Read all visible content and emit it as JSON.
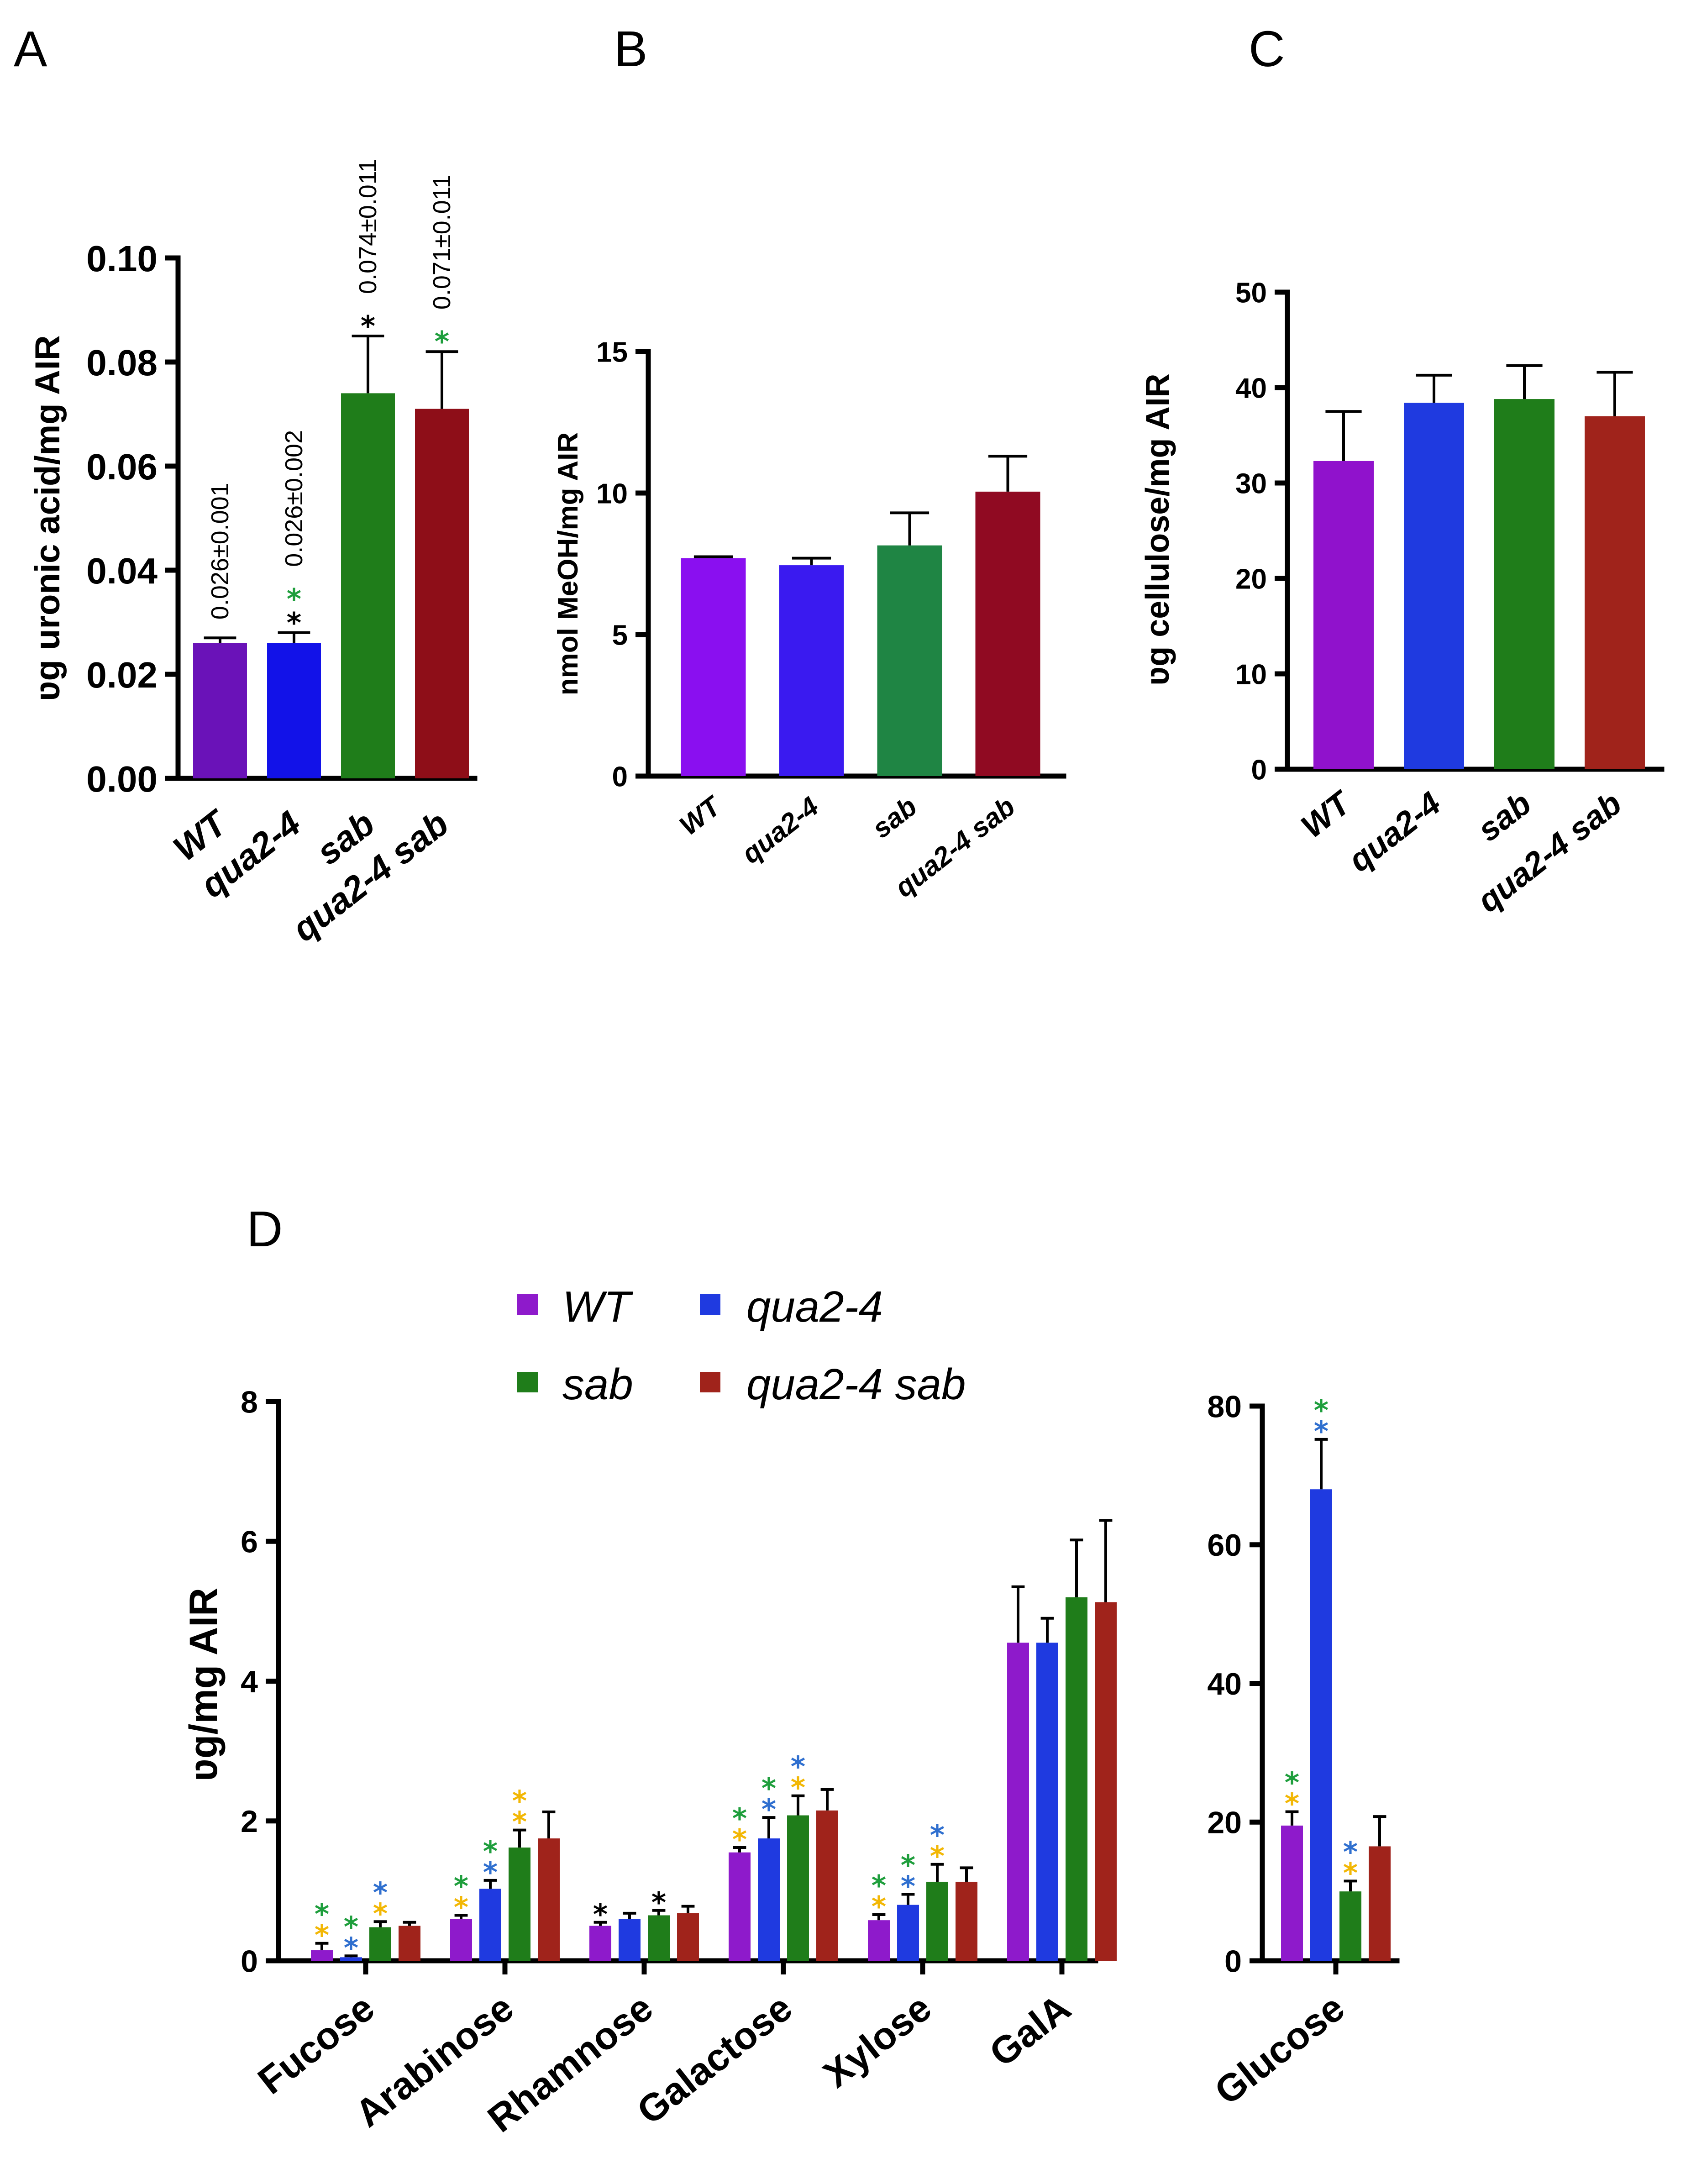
{
  "colors": {
    "purple": "#8E1ACB",
    "blue": "#1F3AE0",
    "green": "#1F7D1A",
    "red": "#A0231B",
    "star_green": "#1E9E3C",
    "star_blue": "#2F6FCF",
    "star_yellow": "#F2B705",
    "star_black": "#000000"
  },
  "chart_data": [
    {
      "id": "A",
      "panel_label": "A",
      "type": "bar",
      "ylabel": "ʋg uronic acid/mg AIR",
      "ylim": [
        0,
        0.1
      ],
      "yticks": [
        0,
        0.02,
        0.04,
        0.06,
        0.08,
        0.1
      ],
      "ytick_labels": [
        "0.00",
        "0.02",
        "0.04",
        "0.06",
        "0.08",
        "0.10"
      ],
      "categories": [
        "WT",
        "qua2-4",
        "sab",
        "qua2-4 sab"
      ],
      "values": [
        0.026,
        0.026,
        0.074,
        0.071
      ],
      "errors": [
        0.001,
        0.002,
        0.011,
        0.011
      ],
      "bar_colors": [
        "#6A12B8",
        "#1212E8",
        "#1F7D1A",
        "#8E0E18"
      ],
      "annotations": [
        "0.026±0.001",
        "0.026±0.002",
        "0.074±0.011",
        "0.071±0.011"
      ],
      "stars": [
        [],
        [
          "star_green",
          "star_black"
        ],
        [
          "star_black"
        ],
        [
          "star_green"
        ]
      ]
    },
    {
      "id": "B",
      "panel_label": "B",
      "type": "bar",
      "ylabel": "nmol MeOH/mg AIR",
      "ylim": [
        0,
        15
      ],
      "yticks": [
        0,
        5,
        10,
        15
      ],
      "ytick_labels": [
        "0",
        "5",
        "10",
        "15"
      ],
      "categories": [
        "WT",
        "qua2-4",
        "sab",
        "qua2-4 sab"
      ],
      "values": [
        7.7,
        7.45,
        8.15,
        10.05
      ],
      "errors": [
        0.05,
        0.25,
        1.15,
        1.25
      ],
      "bar_colors": [
        "#8A0FF0",
        "#3A1AF0",
        "#1F8544",
        "#900A22"
      ]
    },
    {
      "id": "C",
      "panel_label": "C",
      "type": "bar",
      "ylabel": "ʋg cellulose/mg AIR",
      "ylim": [
        0,
        50
      ],
      "yticks": [
        0,
        10,
        20,
        30,
        40,
        50
      ],
      "ytick_labels": [
        "0",
        "10",
        "20",
        "30",
        "40",
        "50"
      ],
      "categories": [
        "WT",
        "qua2-4",
        "sab",
        "qua2-4 sab"
      ],
      "values": [
        32.3,
        38.4,
        38.8,
        37.0
      ],
      "errors": [
        5.2,
        2.9,
        3.5,
        4.6
      ],
      "bar_colors": [
        "#9012CC",
        "#1F3AE0",
        "#1F7D1A",
        "#A0231B"
      ]
    },
    {
      "id": "D",
      "panel_label": "D",
      "type": "bar",
      "ylabel": "ʋg/mg AIR",
      "ylim": [
        0,
        8
      ],
      "yticks": [
        0,
        2,
        4,
        6,
        8
      ],
      "ytick_labels": [
        "0",
        "2",
        "4",
        "6",
        "8"
      ],
      "categories": [
        "Fucose",
        "Arabinose",
        "Rhamnose",
        "Galactose",
        "Xylose",
        "GalA"
      ],
      "series": [
        {
          "name": "WT",
          "color": "#8E1ACB",
          "values": [
            0.15,
            0.6,
            0.5,
            1.55,
            0.58,
            4.55
          ],
          "errors": [
            0.1,
            0.05,
            0.05,
            0.07,
            0.08,
            0.8
          ]
        },
        {
          "name": "qua2-4",
          "color": "#1F3AE0",
          "values": [
            0.05,
            1.03,
            0.6,
            1.75,
            0.8,
            4.55
          ],
          "errors": [
            0.02,
            0.12,
            0.08,
            0.3,
            0.15,
            0.35
          ]
        },
        {
          "name": "sab",
          "color": "#1F7D1A",
          "values": [
            0.48,
            1.62,
            0.65,
            2.08,
            1.13,
            5.2
          ],
          "errors": [
            0.08,
            0.25,
            0.07,
            0.28,
            0.25,
            0.82
          ]
        },
        {
          "name": "qua2-4 sab",
          "color": "#A0231B",
          "values": [
            0.5,
            1.75,
            0.68,
            2.15,
            1.13,
            5.13
          ],
          "errors": [
            0.05,
            0.38,
            0.1,
            0.3,
            0.2,
            1.17
          ]
        }
      ],
      "stars": [
        [
          [
            "star_yellow",
            "star_green"
          ],
          [
            "star_blue",
            "star_green"
          ],
          [
            "star_yellow",
            "star_blue"
          ],
          []
        ],
        [
          [
            "star_yellow",
            "star_green"
          ],
          [
            "star_blue",
            "star_green"
          ],
          [
            "star_yellow",
            "star_yellow"
          ],
          []
        ],
        [
          [
            "star_black"
          ],
          [],
          [
            "star_black"
          ],
          []
        ],
        [
          [
            "star_yellow",
            "star_green"
          ],
          [
            "star_blue",
            "star_green"
          ],
          [
            "star_yellow",
            "star_blue"
          ],
          []
        ],
        [
          [
            "star_yellow",
            "star_green"
          ],
          [
            "star_blue",
            "star_green"
          ],
          [
            "star_yellow",
            "star_blue"
          ],
          []
        ],
        [
          [],
          [],
          [],
          []
        ]
      ],
      "legend": [
        "WT",
        "qua2-4",
        "sab",
        "qua2-4 sab"
      ]
    },
    {
      "id": "E",
      "type": "bar",
      "ylim": [
        0,
        80
      ],
      "yticks": [
        0,
        20,
        40,
        60,
        80
      ],
      "ytick_labels": [
        "0",
        "20",
        "40",
        "60",
        "80"
      ],
      "categories": [
        "Glucose"
      ],
      "series": [
        {
          "name": "WT",
          "color": "#8E1ACB",
          "values": [
            19.5
          ],
          "errors": [
            2.0
          ]
        },
        {
          "name": "qua2-4",
          "color": "#1F3AE0",
          "values": [
            68.0
          ],
          "errors": [
            7.2
          ]
        },
        {
          "name": "sab",
          "color": "#1F7D1A",
          "values": [
            10.0
          ],
          "errors": [
            1.5
          ]
        },
        {
          "name": "qua2-4 sab",
          "color": "#A0231B",
          "values": [
            16.5
          ],
          "errors": [
            4.3
          ]
        }
      ],
      "stars": [
        [
          [
            "star_yellow",
            "star_green"
          ],
          [
            "star_blue",
            "star_green"
          ],
          [
            "star_yellow",
            "star_blue"
          ],
          []
        ]
      ]
    }
  ]
}
